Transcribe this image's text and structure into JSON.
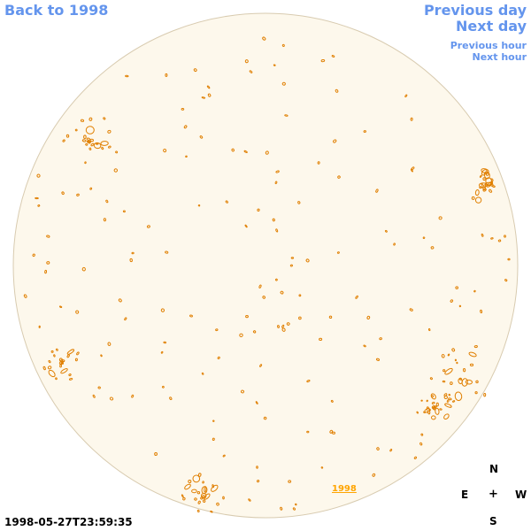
{
  "nav": {
    "back_label": "Back to 1998",
    "previous_day": "Previous day",
    "next_day": "Next day",
    "previous_hour": "Previous hour",
    "next_hour": "Next hour"
  },
  "compass": {
    "north": "N",
    "east": "E",
    "west": "W",
    "south": "S",
    "center": "+"
  },
  "timestamp": "1998-05-27T23:59:35",
  "year_marker": "1998",
  "colors": {
    "disk_fill": "#fdf8ec",
    "disk_outline": "#d8cbb0",
    "contour": "#e07f00",
    "link": "#6495ed",
    "year_link": "#ffa500"
  }
}
